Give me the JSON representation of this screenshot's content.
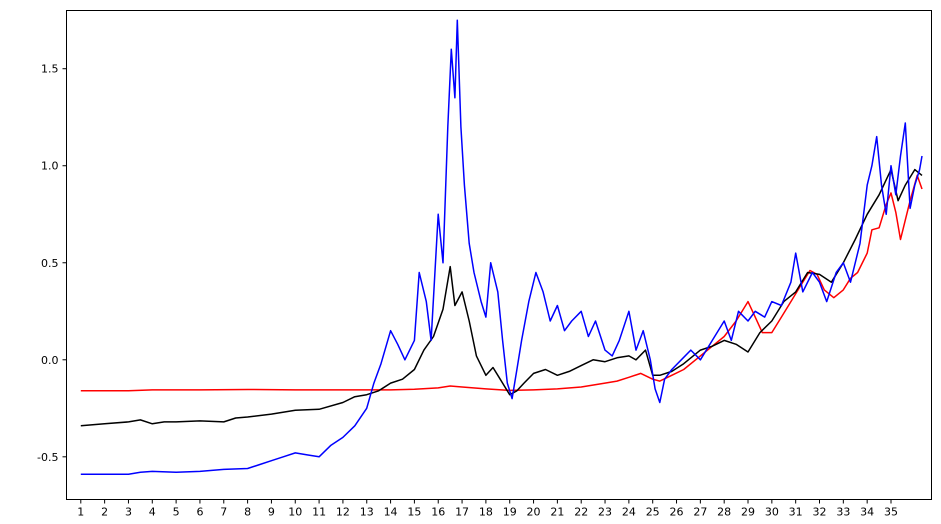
{
  "chart_data": {
    "type": "line",
    "title": "",
    "xlabel": "",
    "ylabel": "",
    "xlim": [
      0.4,
      36.7
    ],
    "ylim": [
      -0.72,
      1.8
    ],
    "grid": false,
    "legend": "none",
    "xticks": [
      "1",
      "2",
      "3",
      "4",
      "5",
      "6",
      "7",
      "8",
      "9",
      "10",
      "11",
      "12",
      "13",
      "14",
      "15",
      "16",
      "17",
      "18",
      "19",
      "20",
      "21",
      "22",
      "23",
      "24",
      "25",
      "26",
      "27",
      "28",
      "29",
      "30",
      "31",
      "32",
      "33",
      "34",
      "35"
    ],
    "yticks": [
      {
        "value": -0.5,
        "label": "-0.5"
      },
      {
        "value": 0.0,
        "label": "0.0"
      },
      {
        "value": 0.5,
        "label": "0.5"
      },
      {
        "value": 1.0,
        "label": "1.0"
      },
      {
        "value": 1.5,
        "label": "1.5"
      }
    ],
    "series": [
      {
        "color": "#ff0000",
        "points": [
          [
            1,
            -0.16
          ],
          [
            3,
            -0.16
          ],
          [
            4,
            -0.155
          ],
          [
            6,
            -0.155
          ],
          [
            8,
            -0.153
          ],
          [
            10,
            -0.155
          ],
          [
            12,
            -0.155
          ],
          [
            14,
            -0.155
          ],
          [
            15,
            -0.152
          ],
          [
            16,
            -0.145
          ],
          [
            16.5,
            -0.135
          ],
          [
            17,
            -0.14
          ],
          [
            18,
            -0.15
          ],
          [
            19,
            -0.158
          ],
          [
            20,
            -0.155
          ],
          [
            21,
            -0.15
          ],
          [
            22,
            -0.14
          ],
          [
            23,
            -0.12
          ],
          [
            23.5,
            -0.11
          ],
          [
            24,
            -0.09
          ],
          [
            24.5,
            -0.07
          ],
          [
            25,
            -0.1
          ],
          [
            25.3,
            -0.11
          ],
          [
            25.8,
            -0.08
          ],
          [
            26.3,
            -0.05
          ],
          [
            27,
            0.02
          ],
          [
            27.5,
            0.07
          ],
          [
            28,
            0.12
          ],
          [
            28.5,
            0.2
          ],
          [
            29,
            0.3
          ],
          [
            29.3,
            0.22
          ],
          [
            29.6,
            0.14
          ],
          [
            30,
            0.14
          ],
          [
            30.4,
            0.22
          ],
          [
            30.8,
            0.3
          ],
          [
            31.2,
            0.38
          ],
          [
            31.6,
            0.46
          ],
          [
            31.9,
            0.44
          ],
          [
            32.2,
            0.36
          ],
          [
            32.6,
            0.32
          ],
          [
            33,
            0.36
          ],
          [
            33.3,
            0.42
          ],
          [
            33.6,
            0.45
          ],
          [
            34,
            0.55
          ],
          [
            34.2,
            0.67
          ],
          [
            34.5,
            0.68
          ],
          [
            34.8,
            0.8
          ],
          [
            35,
            0.86
          ],
          [
            35.2,
            0.76
          ],
          [
            35.4,
            0.62
          ],
          [
            35.6,
            0.72
          ],
          [
            35.8,
            0.82
          ],
          [
            36.1,
            0.95
          ],
          [
            36.3,
            0.88
          ]
        ]
      },
      {
        "color": "#000000",
        "points": [
          [
            1,
            -0.34
          ],
          [
            2,
            -0.33
          ],
          [
            3,
            -0.32
          ],
          [
            3.5,
            -0.31
          ],
          [
            4,
            -0.33
          ],
          [
            4.5,
            -0.32
          ],
          [
            5,
            -0.32
          ],
          [
            6,
            -0.315
          ],
          [
            7,
            -0.32
          ],
          [
            7.5,
            -0.3
          ],
          [
            8,
            -0.295
          ],
          [
            9,
            -0.28
          ],
          [
            10,
            -0.26
          ],
          [
            11,
            -0.255
          ],
          [
            12,
            -0.22
          ],
          [
            12.5,
            -0.19
          ],
          [
            13,
            -0.18
          ],
          [
            13.5,
            -0.16
          ],
          [
            14,
            -0.12
          ],
          [
            14.5,
            -0.1
          ],
          [
            15,
            -0.05
          ],
          [
            15.4,
            0.05
          ],
          [
            15.8,
            0.12
          ],
          [
            16.2,
            0.26
          ],
          [
            16.5,
            0.48
          ],
          [
            16.7,
            0.28
          ],
          [
            17,
            0.35
          ],
          [
            17.3,
            0.2
          ],
          [
            17.6,
            0.02
          ],
          [
            18,
            -0.08
          ],
          [
            18.3,
            -0.04
          ],
          [
            18.6,
            -0.1
          ],
          [
            19,
            -0.18
          ],
          [
            19.3,
            -0.16
          ],
          [
            19.6,
            -0.12
          ],
          [
            20,
            -0.07
          ],
          [
            20.5,
            -0.05
          ],
          [
            21,
            -0.08
          ],
          [
            21.5,
            -0.06
          ],
          [
            22,
            -0.03
          ],
          [
            22.5,
            0.0
          ],
          [
            23,
            -0.01
          ],
          [
            23.5,
            0.01
          ],
          [
            24,
            0.02
          ],
          [
            24.3,
            0.0
          ],
          [
            24.7,
            0.05
          ],
          [
            25,
            -0.08
          ],
          [
            25.3,
            -0.08
          ],
          [
            25.8,
            -0.06
          ],
          [
            26.3,
            -0.02
          ],
          [
            27,
            0.05
          ],
          [
            27.5,
            0.07
          ],
          [
            28,
            0.1
          ],
          [
            28.5,
            0.08
          ],
          [
            29,
            0.04
          ],
          [
            29.5,
            0.14
          ],
          [
            30,
            0.2
          ],
          [
            30.5,
            0.3
          ],
          [
            31,
            0.35
          ],
          [
            31.5,
            0.45
          ],
          [
            32,
            0.44
          ],
          [
            32.5,
            0.4
          ],
          [
            33,
            0.5
          ],
          [
            33.5,
            0.62
          ],
          [
            34,
            0.75
          ],
          [
            34.5,
            0.85
          ],
          [
            35,
            0.98
          ],
          [
            35.3,
            0.82
          ],
          [
            35.6,
            0.9
          ],
          [
            36,
            0.98
          ],
          [
            36.3,
            0.95
          ]
        ]
      },
      {
        "color": "#0000ff",
        "points": [
          [
            1,
            -0.59
          ],
          [
            2,
            -0.59
          ],
          [
            3,
            -0.59
          ],
          [
            3.5,
            -0.58
          ],
          [
            4,
            -0.575
          ],
          [
            5,
            -0.58
          ],
          [
            6,
            -0.575
          ],
          [
            7,
            -0.565
          ],
          [
            8,
            -0.56
          ],
          [
            8.5,
            -0.54
          ],
          [
            9,
            -0.52
          ],
          [
            9.5,
            -0.5
          ],
          [
            10,
            -0.48
          ],
          [
            10.5,
            -0.49
          ],
          [
            11,
            -0.5
          ],
          [
            11.5,
            -0.44
          ],
          [
            12,
            -0.4
          ],
          [
            12.5,
            -0.34
          ],
          [
            13,
            -0.25
          ],
          [
            13.3,
            -0.12
          ],
          [
            13.6,
            -0.02
          ],
          [
            14,
            0.15
          ],
          [
            14.3,
            0.08
          ],
          [
            14.6,
            0.0
          ],
          [
            15,
            0.1
          ],
          [
            15.2,
            0.45
          ],
          [
            15.5,
            0.3
          ],
          [
            15.7,
            0.1
          ],
          [
            16,
            0.75
          ],
          [
            16.2,
            0.5
          ],
          [
            16.4,
            1.2
          ],
          [
            16.55,
            1.6
          ],
          [
            16.7,
            1.35
          ],
          [
            16.8,
            1.75
          ],
          [
            16.95,
            1.2
          ],
          [
            17.1,
            0.9
          ],
          [
            17.3,
            0.6
          ],
          [
            17.5,
            0.45
          ],
          [
            17.8,
            0.3
          ],
          [
            18,
            0.22
          ],
          [
            18.2,
            0.5
          ],
          [
            18.5,
            0.35
          ],
          [
            18.7,
            0.1
          ],
          [
            18.9,
            -0.12
          ],
          [
            19.1,
            -0.2
          ],
          [
            19.3,
            -0.05
          ],
          [
            19.5,
            0.1
          ],
          [
            19.8,
            0.3
          ],
          [
            20.1,
            0.45
          ],
          [
            20.4,
            0.35
          ],
          [
            20.7,
            0.2
          ],
          [
            21,
            0.28
          ],
          [
            21.3,
            0.15
          ],
          [
            21.6,
            0.2
          ],
          [
            22,
            0.25
          ],
          [
            22.3,
            0.12
          ],
          [
            22.6,
            0.2
          ],
          [
            23,
            0.05
          ],
          [
            23.3,
            0.02
          ],
          [
            23.6,
            0.1
          ],
          [
            24,
            0.25
          ],
          [
            24.3,
            0.05
          ],
          [
            24.6,
            0.15
          ],
          [
            24.9,
            0.0
          ],
          [
            25.1,
            -0.15
          ],
          [
            25.3,
            -0.22
          ],
          [
            25.5,
            -0.1
          ],
          [
            25.8,
            -0.05
          ],
          [
            26.2,
            0.0
          ],
          [
            26.6,
            0.05
          ],
          [
            27,
            0.0
          ],
          [
            27.5,
            0.1
          ],
          [
            28,
            0.2
          ],
          [
            28.3,
            0.1
          ],
          [
            28.6,
            0.25
          ],
          [
            29,
            0.2
          ],
          [
            29.3,
            0.25
          ],
          [
            29.7,
            0.22
          ],
          [
            30,
            0.3
          ],
          [
            30.4,
            0.28
          ],
          [
            30.8,
            0.4
          ],
          [
            31,
            0.55
          ],
          [
            31.3,
            0.35
          ],
          [
            31.7,
            0.45
          ],
          [
            32,
            0.4
          ],
          [
            32.3,
            0.3
          ],
          [
            32.7,
            0.45
          ],
          [
            33,
            0.5
          ],
          [
            33.3,
            0.4
          ],
          [
            33.7,
            0.6
          ],
          [
            34,
            0.9
          ],
          [
            34.2,
            1.0
          ],
          [
            34.4,
            1.15
          ],
          [
            34.6,
            0.9
          ],
          [
            34.8,
            0.75
          ],
          [
            35,
            1.0
          ],
          [
            35.2,
            0.85
          ],
          [
            35.4,
            1.05
          ],
          [
            35.6,
            1.22
          ],
          [
            35.8,
            0.78
          ],
          [
            36,
            0.9
          ],
          [
            36.2,
            0.98
          ],
          [
            36.3,
            1.05
          ]
        ]
      }
    ]
  }
}
